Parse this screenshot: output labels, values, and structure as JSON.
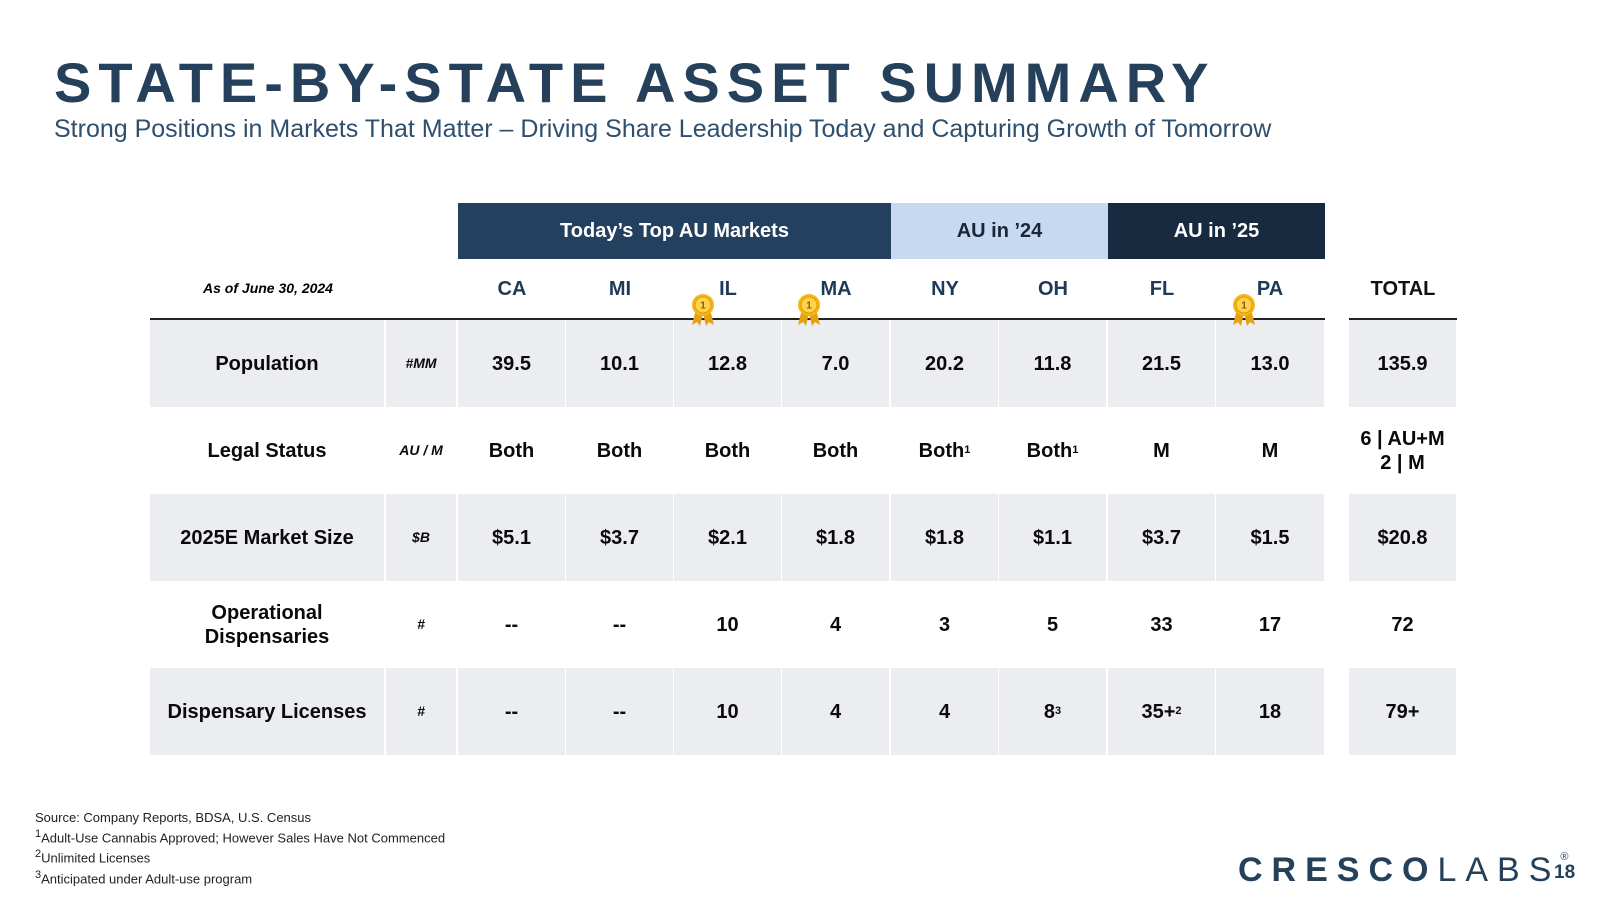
{
  "title": "STATE-BY-STATE ASSET SUMMARY",
  "subtitle": "Strong Positions in Markets That Matter – Driving Share Leadership Today and Capturing Growth of Tomorrow",
  "groups": {
    "today": "Today’s Top AU Markets",
    "au24": "AU in ’24",
    "au25": "AU in ’25"
  },
  "as_of": "As of June 30, 2024",
  "states": [
    "CA",
    "MI",
    "IL",
    "MA",
    "NY",
    "OH",
    "FL",
    "PA"
  ],
  "total_label": "TOTAL",
  "medal_badge": "1",
  "rows": {
    "population": {
      "label": "Population",
      "unit": "#MM",
      "values": [
        "39.5",
        "10.1",
        "12.8",
        "7.0",
        "20.2",
        "11.8",
        "21.5",
        "13.0"
      ],
      "total": "135.9"
    },
    "legal": {
      "label": "Legal Status",
      "unit": "AU / M",
      "values": [
        "Both",
        "Both",
        "Both",
        "Both",
        "Both",
        "Both",
        "M",
        "M"
      ],
      "sup_ny": "1",
      "sup_oh": "1",
      "total_line1": "6 | AU+M",
      "total_line2": "2 | M"
    },
    "market": {
      "label": "2025E Market Size",
      "unit": "$B",
      "values": [
        "$5.1",
        "$3.7",
        "$2.1",
        "$1.8",
        "$1.8",
        "$1.1",
        "$3.7",
        "$1.5"
      ],
      "total": "$20.8"
    },
    "dispensaries": {
      "label_line1": "Operational",
      "label_line2": "Dispensaries",
      "unit": "#",
      "values": [
        "--",
        "--",
        "10",
        "4",
        "3",
        "5",
        "33",
        "17"
      ],
      "total": "72"
    },
    "licenses": {
      "label": "Dispensary Licenses",
      "unit": "#",
      "values": [
        "--",
        "--",
        "10",
        "4",
        "4",
        "8",
        "35+",
        "18"
      ],
      "sup_oh": "3",
      "sup_fl": "2",
      "total": "79+"
    }
  },
  "footnotes": {
    "source": "Source: Company Reports, BDSA, U.S. Census",
    "n1_mark": "1",
    "n1": "Adult-Use Cannabis Approved; However Sales Have Not Commenced",
    "n2_mark": "2",
    "n2": "Unlimited Licenses",
    "n3_mark": "3",
    "n3": "Anticipated under Adult-use program"
  },
  "logo": {
    "part1": "CRESCO",
    "part2": "LABS",
    "mark": "®"
  },
  "page_number": "18",
  "colors": {
    "title": "#24405a",
    "today_header": "#24405f",
    "au24_header": "#c7d9f0",
    "au25_header": "#172a40",
    "row_shade": "#ebedf1",
    "medal_gold": "#f5b417"
  }
}
